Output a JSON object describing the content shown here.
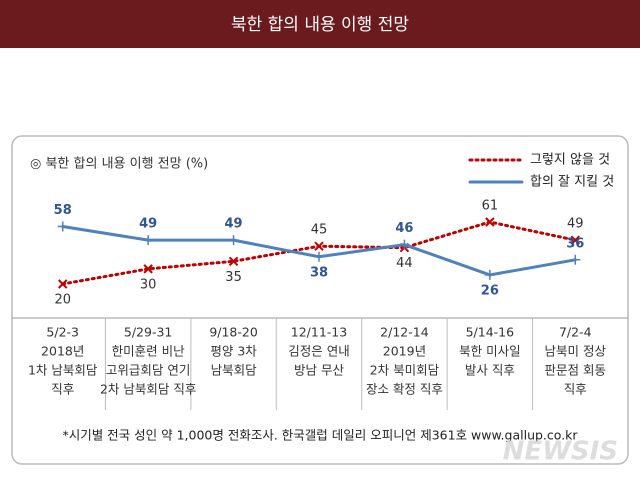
{
  "header": {
    "title": "북한 합의 내용 이행 전망"
  },
  "chart_data": {
    "type": "line",
    "title": "◎  북한 합의 내용 이행 전망 (%)",
    "categories": [
      [
        "5/2-3",
        "2018년",
        "1차 남북회담",
        "직후"
      ],
      [
        "5/29-31",
        "한미훈련 비난",
        "고위급회담 연기",
        "2차 남북회담 직후"
      ],
      [
        "9/18-20",
        "평양 3차",
        "남북회담"
      ],
      [
        "12/11-13",
        "김정은 연내",
        "방남 무산"
      ],
      [
        "2/12-14",
        "2019년",
        "2차 북미회담",
        "장소 확정 직후"
      ],
      [
        "5/14-16",
        "북한 미사일",
        "발사 직후"
      ],
      [
        "7/2-4",
        "남북미 정상",
        "판문점 회동",
        "직후"
      ]
    ],
    "series": [
      {
        "name": "그렇지 않을 것",
        "color": "#c00000",
        "values": [
          20,
          30,
          35,
          45,
          44,
          61,
          49
        ]
      },
      {
        "name": "합의 잘 지킬 것",
        "color": "#4f81bd",
        "values": [
          58,
          49,
          49,
          38,
          46,
          26,
          36
        ]
      }
    ],
    "legend": "top-right",
    "footnote": "*시기별 전국 성인 약 1,000명 전화조사. 한국갤럽 데일리 오피니언 제361호 www.gallup.co.kr"
  },
  "watermark": "NEWSIS"
}
